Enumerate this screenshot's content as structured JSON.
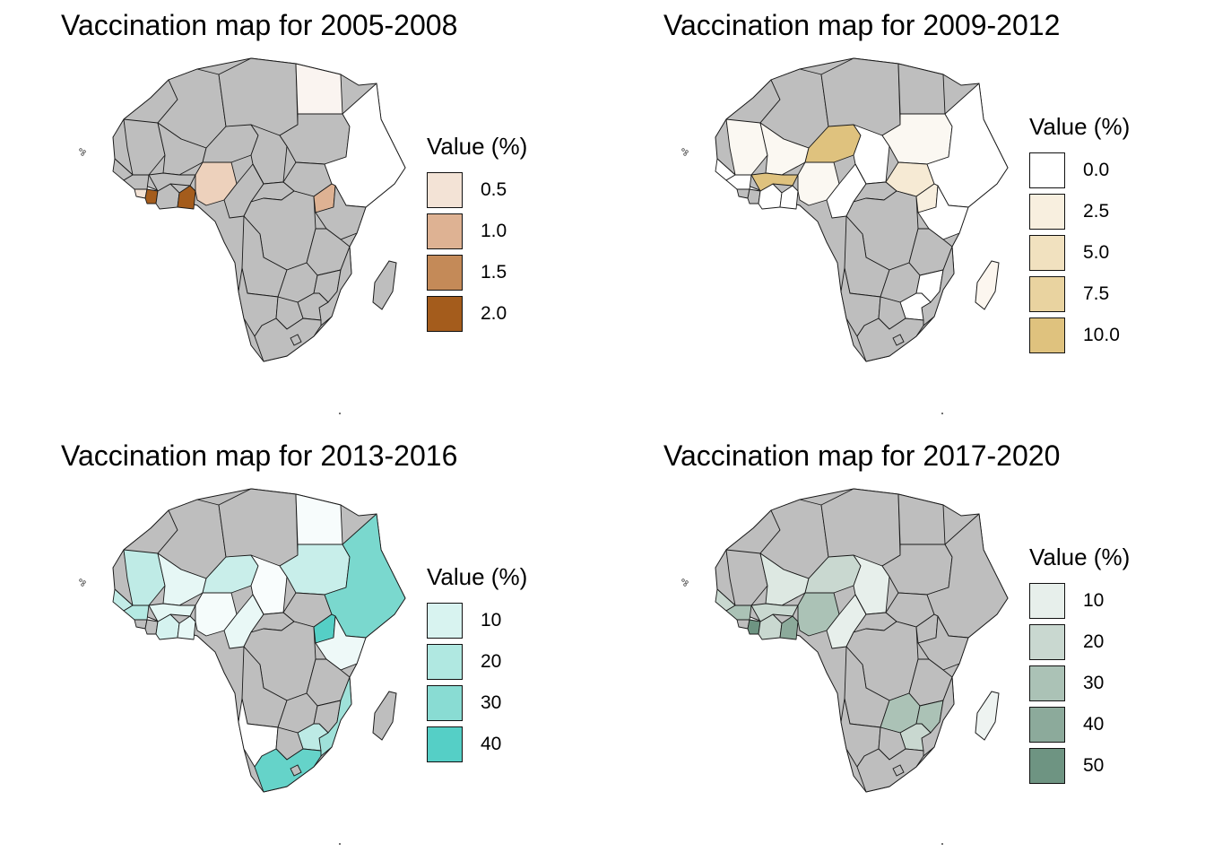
{
  "land_color": "#bebebe",
  "border_color": "#1a1a1a",
  "panels": [
    {
      "title": "Vaccination map for 2005-2008",
      "legend": {
        "title": "Value (%)",
        "items": [
          {
            "label": "0.5",
            "color": "#f3e3d6"
          },
          {
            "label": "1.0",
            "color": "#deb293"
          },
          {
            "label": "1.5",
            "color": "#c48a58"
          },
          {
            "label": "2.0",
            "color": "#a45c1c"
          }
        ]
      },
      "highlighted_regions": [
        {
          "region": "egypt",
          "color": "#faf4f0"
        },
        {
          "region": "ethiopia-somalia",
          "color": "#ffffff"
        },
        {
          "region": "nigeria",
          "color": "#edd1bc"
        },
        {
          "region": "ghana",
          "color": "#a45c1c"
        },
        {
          "region": "liberia",
          "color": "#a45c1c"
        },
        {
          "region": "sierra-leone",
          "color": "#f3e3d6"
        },
        {
          "region": "uganda",
          "color": "#deb293"
        }
      ]
    },
    {
      "title": "Vaccination map for 2009-2012",
      "legend": {
        "title": "Value (%)",
        "items": [
          {
            "label": "0.0",
            "color": "#ffffff"
          },
          {
            "label": "2.5",
            "color": "#f8efdf"
          },
          {
            "label": "5.0",
            "color": "#f1e1bf"
          },
          {
            "label": "7.5",
            "color": "#e9d3a0"
          },
          {
            "label": "10.0",
            "color": "#dfc27e"
          }
        ]
      },
      "highlighted_regions": [
        {
          "region": "niger",
          "color": "#dfc27e"
        },
        {
          "region": "burkina",
          "color": "#dfc27e"
        },
        {
          "region": "mali",
          "color": "#fbf8f2"
        },
        {
          "region": "mauritania",
          "color": "#fbf8f2"
        },
        {
          "region": "senegal",
          "color": "#ffffff"
        },
        {
          "region": "guinea",
          "color": "#ffffff"
        },
        {
          "region": "cote-divoire",
          "color": "#ffffff"
        },
        {
          "region": "ghana",
          "color": "#ffffff"
        },
        {
          "region": "nigeria",
          "color": "#fbf8f2"
        },
        {
          "region": "chad",
          "color": "#ffffff"
        },
        {
          "region": "cameroon",
          "color": "#ffffff"
        },
        {
          "region": "sudan",
          "color": "#fbf8f2"
        },
        {
          "region": "south-sudan",
          "color": "#f6ead4"
        },
        {
          "region": "ethiopia-somalia",
          "color": "#ffffff"
        },
        {
          "region": "uganda",
          "color": "#f8efdf"
        },
        {
          "region": "kenya",
          "color": "#ffffff"
        },
        {
          "region": "malawi",
          "color": "#ffffff"
        },
        {
          "region": "zimbabwe",
          "color": "#ffffff"
        },
        {
          "region": "madagascar",
          "color": "#fcf6ef"
        }
      ]
    },
    {
      "title": "Vaccination map for 2013-2016",
      "legend": {
        "title": "Value (%)",
        "items": [
          {
            "label": "10",
            "color": "#d8f3f0"
          },
          {
            "label": "20",
            "color": "#b0e8e1"
          },
          {
            "label": "30",
            "color": "#89dcd3"
          },
          {
            "label": "40",
            "color": "#55cfc6"
          }
        ]
      },
      "highlighted_regions": [
        {
          "region": "egypt",
          "color": "#f7fcfc"
        },
        {
          "region": "mauritania",
          "color": "#bfebe6"
        },
        {
          "region": "mali",
          "color": "#e6f7f5"
        },
        {
          "region": "niger",
          "color": "#c9eeea"
        },
        {
          "region": "chad",
          "color": "#f9fdfd"
        },
        {
          "region": "sudan",
          "color": "#c8eeea"
        },
        {
          "region": "ethiopia-somalia",
          "color": "#7ad8ce"
        },
        {
          "region": "kenya",
          "color": "#eef9f8"
        },
        {
          "region": "uganda",
          "color": "#55cfc6"
        },
        {
          "region": "nigeria",
          "color": "#f5fcfb"
        },
        {
          "region": "burkina",
          "color": "#e4f7f4"
        },
        {
          "region": "senegal",
          "color": "#c2ece7"
        },
        {
          "region": "guinea",
          "color": "#b5e9e3"
        },
        {
          "region": "cote-divoire",
          "color": "#d5f2ef"
        },
        {
          "region": "ghana",
          "color": "#e7f8f6"
        },
        {
          "region": "cameroon",
          "color": "#e9f8f6"
        },
        {
          "region": "mozambique",
          "color": "#9fe1d9"
        },
        {
          "region": "zimbabwe",
          "color": "#bdeae5"
        },
        {
          "region": "namibia",
          "color": "#ffffff"
        },
        {
          "region": "south-africa",
          "color": "#65d3c9"
        }
      ]
    },
    {
      "title": "Vaccination map for 2017-2020",
      "legend": {
        "title": "Value (%)",
        "items": [
          {
            "label": "10",
            "color": "#e7efeb"
          },
          {
            "label": "20",
            "color": "#c9d8d0"
          },
          {
            "label": "30",
            "color": "#abc2b6"
          },
          {
            "label": "40",
            "color": "#8caa9b"
          },
          {
            "label": "50",
            "color": "#6e9482"
          }
        ]
      },
      "highlighted_regions": [
        {
          "region": "mali",
          "color": "#dde8e2"
        },
        {
          "region": "niger",
          "color": "#c9d8d0"
        },
        {
          "region": "nigeria",
          "color": "#abc2b6"
        },
        {
          "region": "burkina",
          "color": "#c9d8d0"
        },
        {
          "region": "senegal",
          "color": "#c9d8d0"
        },
        {
          "region": "guinea",
          "color": "#abc2b6"
        },
        {
          "region": "liberia",
          "color": "#6e9482"
        },
        {
          "region": "ghana",
          "color": "#8caa9b"
        },
        {
          "region": "cote-divoire",
          "color": "#c9d8d0"
        },
        {
          "region": "chad",
          "color": "#e7efeb"
        },
        {
          "region": "cameroon",
          "color": "#e7efeb"
        },
        {
          "region": "zambia",
          "color": "#abc2b6"
        },
        {
          "region": "malawi",
          "color": "#abc2b6"
        },
        {
          "region": "zimbabwe",
          "color": "#c9d8d0"
        },
        {
          "region": "madagascar",
          "color": "#eef3f1"
        }
      ]
    }
  ]
}
